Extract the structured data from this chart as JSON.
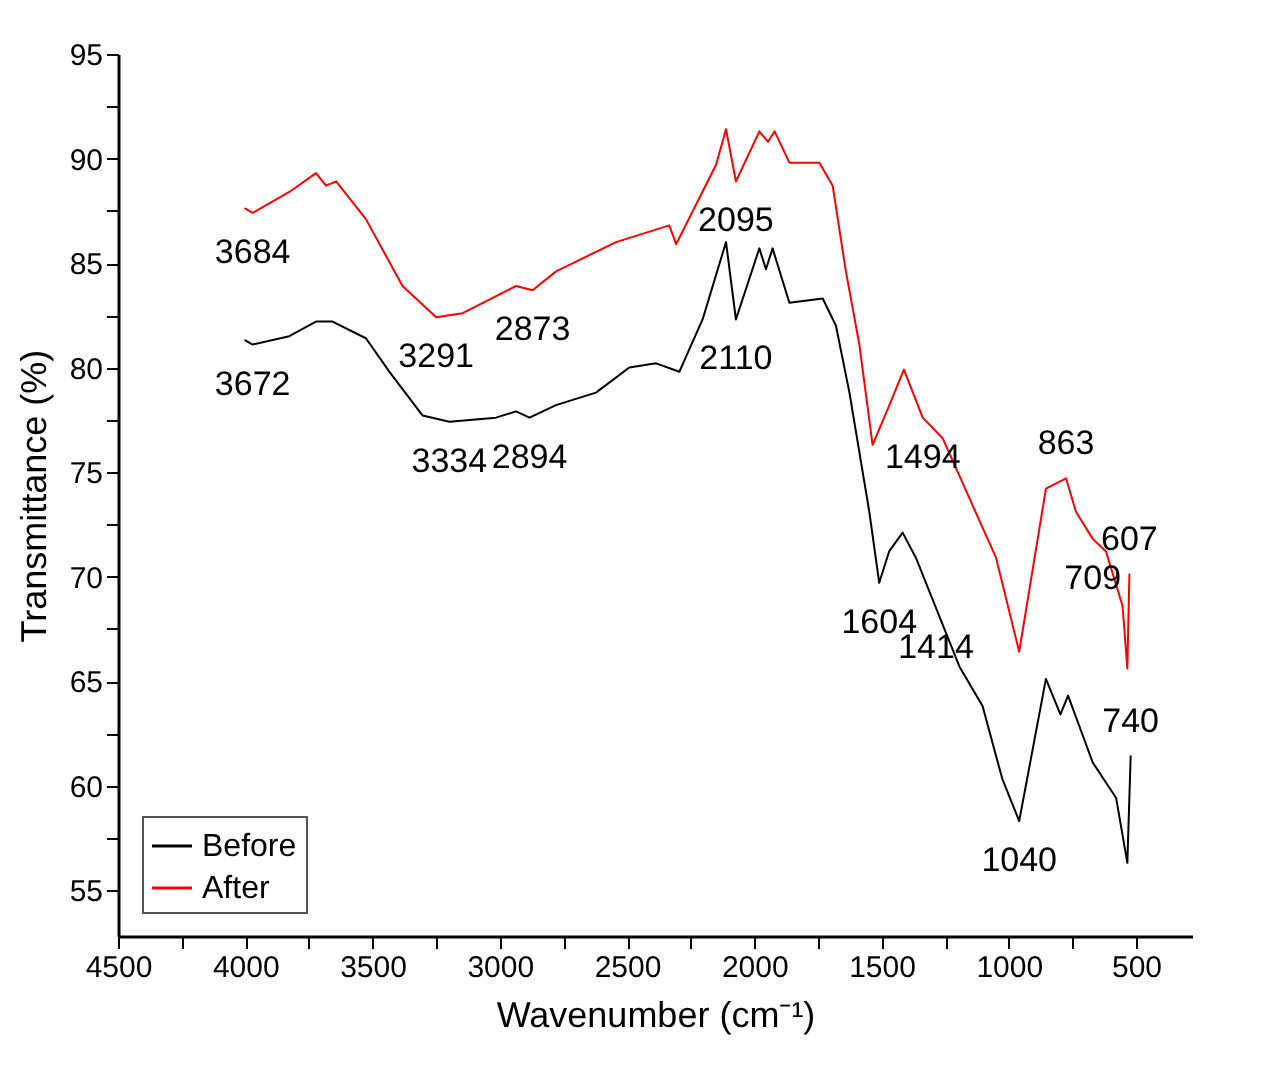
{
  "chart_data": {
    "type": "line",
    "xlabel": "Wavenumber (cm⁻¹)",
    "ylabel": "Transmittance (%)",
    "xlim": [
      4500,
      280
    ],
    "ylim": [
      52.8,
      95
    ],
    "xticks": [
      4500,
      {
        "value": 4250,
        "label": null
      },
      4000,
      {
        "value": 3750,
        "label": null
      },
      3500,
      {
        "value": 3250,
        "label": null
      },
      3000,
      {
        "value": 2750,
        "label": null
      },
      2500,
      {
        "value": 2250,
        "label": null
      },
      2000,
      {
        "value": 1750,
        "label": null
      },
      1500,
      {
        "value": 1250,
        "label": null
      },
      1000,
      {
        "value": 750,
        "label": null
      },
      500
    ],
    "yticks": [
      55,
      {
        "value": 57.5,
        "label": null
      },
      60,
      {
        "value": 62.5,
        "label": null
      },
      65,
      {
        "value": 67.5,
        "label": null
      },
      70,
      {
        "value": 72.5,
        "label": null
      },
      75,
      {
        "value": 77.5,
        "label": null
      },
      80,
      {
        "value": 82.5,
        "label": null
      },
      85,
      {
        "value": 87.5,
        "label": null
      },
      90,
      {
        "value": 92.5,
        "label": null
      },
      95
    ],
    "grid": false,
    "legend": "bottom left",
    "line_style": "solid",
    "marker": "none",
    "series": [
      {
        "name": "Before",
        "color": "#000000",
        "x": [
          4000,
          3971,
          3827,
          3722,
          3657,
          3526,
          3434,
          3303,
          3198,
          3015,
          2936,
          2883,
          2779,
          2622,
          2491,
          2386,
          2294,
          2203,
          2111,
          2072,
          1980,
          1954,
          1928,
          1862,
          1731,
          1679,
          1626,
          1548,
          1509,
          1470,
          1417,
          1365,
          1286,
          1194,
          1103,
          1025,
          959,
          854,
          797,
          767,
          670,
          578,
          534,
          521
        ],
        "values": [
          81.3,
          81.1,
          81.5,
          82.2,
          82.2,
          81.4,
          79.8,
          77.7,
          77.4,
          77.6,
          77.9,
          77.6,
          78.2,
          78.8,
          80.0,
          80.2,
          79.8,
          82.3,
          86.0,
          82.3,
          85.7,
          84.7,
          85.7,
          83.1,
          83.3,
          82.0,
          78.8,
          73.1,
          69.7,
          71.2,
          72.1,
          70.9,
          68.5,
          65.7,
          63.8,
          60.3,
          58.3,
          65.1,
          63.4,
          64.3,
          61.1,
          59.4,
          56.3,
          61.4
        ]
      },
      {
        "name": "After",
        "color": "#ff0000",
        "x": [
          4000,
          3971,
          3827,
          3722,
          3683,
          3643,
          3526,
          3382,
          3250,
          3146,
          2936,
          2871,
          2779,
          2543,
          2334,
          2307,
          2150,
          2111,
          2072,
          1980,
          1946,
          1920,
          1862,
          1744,
          1692,
          1640,
          1587,
          1535,
          1469,
          1412,
          1338,
          1259,
          1142,
          1050,
          959,
          854,
          775,
          736,
          670,
          618,
          553,
          534,
          526
        ],
        "values": [
          87.6,
          87.4,
          88.4,
          89.3,
          88.7,
          88.9,
          87.1,
          83.9,
          82.4,
          82.6,
          83.9,
          83.7,
          84.6,
          86.0,
          86.8,
          85.9,
          89.7,
          91.4,
          88.9,
          91.3,
          90.8,
          91.3,
          89.8,
          89.8,
          88.7,
          84.6,
          81.1,
          76.3,
          78.2,
          79.9,
          77.6,
          76.6,
          73.4,
          70.9,
          66.4,
          74.2,
          74.7,
          73.1,
          71.8,
          71.2,
          68.6,
          65.6,
          70.1
        ]
      }
    ],
    "annotations": [
      {
        "text": "3684",
        "x": 3971,
        "y": 87.4
      },
      {
        "text": "3672",
        "x": 3971,
        "y": 81.1
      },
      {
        "text": "3291",
        "x": 3250,
        "y": 82.4
      },
      {
        "text": "3334",
        "x": 3198,
        "y": 77.4
      },
      {
        "text": "2873",
        "x": 2871,
        "y": 83.7
      },
      {
        "text": "2894",
        "x": 2883,
        "y": 77.6
      },
      {
        "text": "2095",
        "x": 2072,
        "y": 88.9
      },
      {
        "text": "2110",
        "x": 2072,
        "y": 82.3
      },
      {
        "text": "863",
        "x": 775,
        "y": 74.7
      },
      {
        "text": "1494",
        "x": 1338,
        "y": 77.6
      },
      {
        "text": "1604",
        "x": 1509,
        "y": 69.7
      },
      {
        "text": "1414",
        "x": 1286,
        "y": 68.5
      },
      {
        "text": "709",
        "x": 670,
        "y": 71.8
      },
      {
        "text": "607",
        "x": 526,
        "y": 70.1
      },
      {
        "text": "740",
        "x": 521,
        "y": 61.4
      },
      {
        "text": "1040",
        "x": 959,
        "y": 58.3
      }
    ]
  }
}
